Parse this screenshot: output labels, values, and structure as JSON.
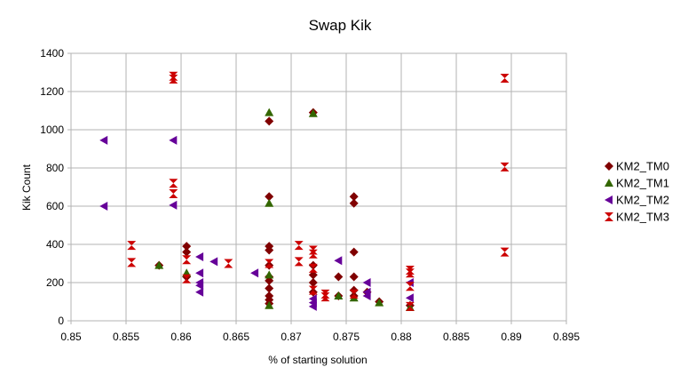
{
  "chart_data": {
    "type": "scatter",
    "title": "Swap Kik",
    "xlabel": "% of starting solution",
    "ylabel": "Kik Count",
    "xlim": [
      0.85,
      0.895
    ],
    "ylim": [
      0,
      1400
    ],
    "x_ticks": [
      "0.85",
      "0.855",
      "0.86",
      "0.865",
      "0.87",
      "0.875",
      "0.88",
      "0.885",
      "0.89",
      "0.895"
    ],
    "y_ticks": [
      "0",
      "200",
      "400",
      "600",
      "800",
      "1000",
      "1200",
      "1400"
    ],
    "grid": true,
    "legend_position": "right",
    "series": [
      {
        "name": "KM2_TM0",
        "marker": "diamond",
        "color": "#800000",
        "points": [
          [
            0.858,
            290
          ],
          [
            0.8605,
            390
          ],
          [
            0.8605,
            360
          ],
          [
            0.8605,
            230
          ],
          [
            0.868,
            1045
          ],
          [
            0.868,
            650
          ],
          [
            0.868,
            390
          ],
          [
            0.868,
            370
          ],
          [
            0.868,
            290
          ],
          [
            0.868,
            230
          ],
          [
            0.868,
            210
          ],
          [
            0.868,
            170
          ],
          [
            0.868,
            130
          ],
          [
            0.868,
            110
          ],
          [
            0.868,
            90
          ],
          [
            0.872,
            1090
          ],
          [
            0.872,
            290
          ],
          [
            0.872,
            240
          ],
          [
            0.872,
            200
          ],
          [
            0.872,
            150
          ],
          [
            0.8743,
            230
          ],
          [
            0.8743,
            130
          ],
          [
            0.8757,
            650
          ],
          [
            0.8757,
            615
          ],
          [
            0.8757,
            360
          ],
          [
            0.8757,
            230
          ],
          [
            0.8757,
            160
          ],
          [
            0.8757,
            130
          ],
          [
            0.8769,
            150
          ],
          [
            0.878,
            100
          ],
          [
            0.8808,
            80
          ]
        ]
      },
      {
        "name": "KM2_TM1",
        "marker": "triangle",
        "color": "#336600",
        "points": [
          [
            0.858,
            290
          ],
          [
            0.8605,
            250
          ],
          [
            0.868,
            1090
          ],
          [
            0.868,
            615
          ],
          [
            0.868,
            240
          ],
          [
            0.868,
            80
          ],
          [
            0.872,
            1085
          ],
          [
            0.8743,
            130
          ],
          [
            0.8757,
            120
          ],
          [
            0.878,
            95
          ],
          [
            0.8808,
            70
          ]
        ]
      },
      {
        "name": "KM2_TM2",
        "marker": "triangle-left",
        "color": "#660099",
        "points": [
          [
            0.853,
            945
          ],
          [
            0.853,
            600
          ],
          [
            0.8593,
            945
          ],
          [
            0.8593,
            605
          ],
          [
            0.8617,
            335
          ],
          [
            0.8617,
            250
          ],
          [
            0.8617,
            200
          ],
          [
            0.8617,
            185
          ],
          [
            0.8617,
            150
          ],
          [
            0.863,
            310
          ],
          [
            0.8667,
            250
          ],
          [
            0.872,
            115
          ],
          [
            0.872,
            95
          ],
          [
            0.872,
            75
          ],
          [
            0.8743,
            315
          ],
          [
            0.8769,
            200
          ],
          [
            0.8769,
            150
          ],
          [
            0.8769,
            130
          ],
          [
            0.8808,
            200
          ],
          [
            0.8808,
            120
          ]
        ]
      },
      {
        "name": "KM2_TM3",
        "marker": "hourglass",
        "color": "#cc0000",
        "points": [
          [
            0.8555,
            395
          ],
          [
            0.8555,
            305
          ],
          [
            0.8593,
            1280
          ],
          [
            0.8593,
            1265
          ],
          [
            0.8593,
            720
          ],
          [
            0.8593,
            665
          ],
          [
            0.8605,
            320
          ],
          [
            0.8605,
            220
          ],
          [
            0.8643,
            300
          ],
          [
            0.868,
            300
          ],
          [
            0.8707,
            395
          ],
          [
            0.8707,
            310
          ],
          [
            0.872,
            370
          ],
          [
            0.872,
            350
          ],
          [
            0.872,
            275
          ],
          [
            0.872,
            160
          ],
          [
            0.8731,
            140
          ],
          [
            0.8731,
            125
          ],
          [
            0.8757,
            140
          ],
          [
            0.8808,
            265
          ],
          [
            0.8808,
            250
          ],
          [
            0.8808,
            180
          ],
          [
            0.8808,
            75
          ],
          [
            0.8894,
            1270
          ],
          [
            0.8894,
            805
          ],
          [
            0.8894,
            360
          ]
        ]
      }
    ]
  }
}
